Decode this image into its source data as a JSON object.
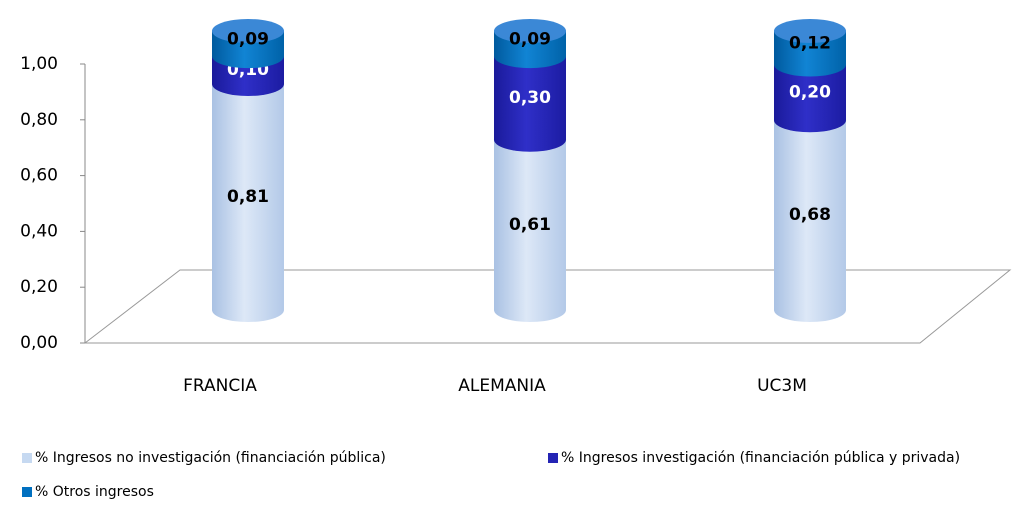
{
  "chart_data": {
    "type": "bar3d_stacked_cylinder",
    "categories": [
      "FRANCIA",
      "ALEMANIA",
      "UC3M"
    ],
    "series": [
      {
        "name": "% Ingresos no investigación (financiación pública)",
        "color": "#c6d9f1",
        "values": [
          0.81,
          0.61,
          0.68
        ],
        "value_labels": [
          "0,81",
          "0,61",
          "0,68"
        ]
      },
      {
        "name": "% Ingresos investigación (financiación pública y privada)",
        "color": "#2424b4",
        "values": [
          0.1,
          0.3,
          0.2
        ],
        "value_labels": [
          "0,10",
          "0,30",
          "0,20"
        ]
      },
      {
        "name": "% Otros ingresos",
        "color": "#0070c0",
        "values": [
          0.09,
          0.09,
          0.12
        ],
        "value_labels": [
          "0,09",
          "0,09",
          "0,12"
        ]
      }
    ],
    "ylim": [
      0,
      1
    ],
    "yticks": [
      {
        "value": 0,
        "label": "0,00"
      },
      {
        "value": 0.2,
        "label": "0,20"
      },
      {
        "value": 0.4,
        "label": "0,40"
      },
      {
        "value": 0.6,
        "label": "0,60"
      },
      {
        "value": 0.8,
        "label": "0,80"
      },
      {
        "value": 1,
        "label": "1,00"
      }
    ]
  }
}
